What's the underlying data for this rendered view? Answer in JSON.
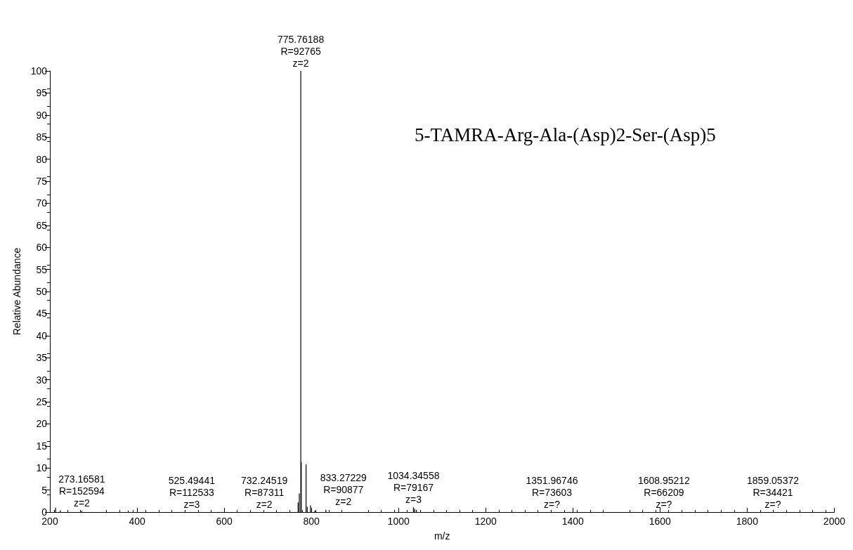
{
  "chart_data": {
    "type": "bar",
    "title": "5-TAMRA-Arg-Ala-(Asp)2-Ser-(Asp)5",
    "xlabel": "m/z",
    "ylabel": "Relative Abundance",
    "x": [
      213,
      224,
      273.16581,
      380,
      769.6,
      772.3,
      775.76188,
      776.8,
      787.8,
      790.5,
      798,
      808,
      833.27229,
      1034.34558,
      1037,
      1041
    ],
    "values": [
      1,
      0.4,
      0.3,
      0.3,
      2.2,
      4.2,
      100,
      11.3,
      10.8,
      1.2,
      1.5,
      0.3,
      0.5,
      1.1,
      0.7,
      0.5
    ],
    "color": "#000000",
    "xlim": [
      200,
      2000
    ],
    "xticks": [
      200,
      400,
      600,
      800,
      1000,
      1200,
      1400,
      1600,
      1800,
      2000
    ],
    "ylim": [
      0,
      100
    ],
    "yticks": [
      0,
      5,
      10,
      15,
      20,
      25,
      30,
      35,
      40,
      45,
      50,
      55,
      60,
      65,
      70,
      75,
      80,
      85,
      90,
      95,
      100
    ],
    "grid": false,
    "annotations": [
      {
        "text": "775.76188\nR=92765\nz=2",
        "x": 775.76188,
        "y": 100
      },
      {
        "text": "273.16581\nR=152594\nz=2",
        "x": 273.16581,
        "y": 0.3
      },
      "525.49441\nR=112533\nz=3",
      "732.24519\nR=87311\nz=2",
      {
        "text": "833.27229\nR=90877\nz=2",
        "x": 833.27229,
        "y": 0.5
      },
      {
        "text": "1034.34558\nR=79167\nz=3",
        "x": 1034.34558,
        "y": 1.1
      },
      "1351.96746\nR=73603\nz=?",
      "1608.95212\nR=66209\nz=?",
      "1859.05372\nR=34421\nz=?"
    ]
  }
}
